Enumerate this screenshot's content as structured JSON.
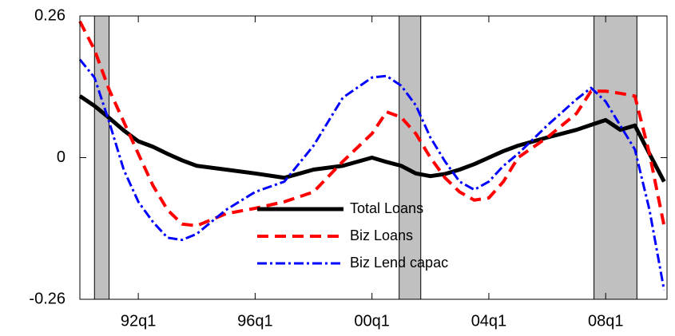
{
  "chart_data": {
    "type": "line",
    "x": [
      1990,
      1990.5,
      1991,
      1991.5,
      1992,
      1992.5,
      1993,
      1993.5,
      1994,
      1995,
      1996,
      1997,
      1998,
      1999,
      2000,
      2000.5,
      2001,
      2001.5,
      2002,
      2002.5,
      2003,
      2003.5,
      2004,
      2004.5,
      2005,
      2006,
      2007,
      2007.5,
      2008,
      2008.5,
      2009,
      2009.5,
      2010
    ],
    "series": [
      {
        "name": "Total Loans",
        "color": "#000000",
        "values": [
          0.113,
          0.095,
          0.073,
          0.05,
          0.03,
          0.02,
          0.007,
          -0.005,
          -0.015,
          -0.022,
          -0.029,
          -0.037,
          -0.022,
          -0.015,
          0,
          -0.008,
          -0.015,
          -0.029,
          -0.034,
          -0.03,
          -0.022,
          -0.012,
          0,
          0.012,
          0.022,
          0.037,
          0.051,
          0.06,
          0.069,
          0.051,
          0.059,
          0.007,
          -0.044
        ]
      },
      {
        "name": "Biz Loans",
        "color": "#ff0000",
        "values": [
          0.25,
          0.198,
          0.125,
          0.066,
          0.007,
          -0.051,
          -0.096,
          -0.122,
          -0.125,
          -0.103,
          -0.093,
          -0.081,
          -0.063,
          -0.007,
          0.044,
          0.084,
          0.074,
          0.044,
          0,
          -0.037,
          -0.063,
          -0.078,
          -0.074,
          -0.044,
          0,
          0.037,
          0.081,
          0.122,
          0.122,
          0.118,
          0.113,
          0.007,
          -0.125
        ]
      },
      {
        "name": "Biz Lend capac",
        "color": "#0000ff",
        "values": [
          0.18,
          0.147,
          0.066,
          -0.022,
          -0.081,
          -0.118,
          -0.147,
          -0.151,
          -0.14,
          -0.096,
          -0.063,
          -0.044,
          0.022,
          0.11,
          0.147,
          0.15,
          0.132,
          0.096,
          0.037,
          -0.007,
          -0.044,
          -0.059,
          -0.044,
          -0.015,
          0.007,
          0.059,
          0.107,
          0.128,
          0.103,
          0.059,
          0.015,
          -0.096,
          -0.243
        ]
      }
    ],
    "recessions": [
      [
        1990.5,
        1991
      ],
      [
        2000.93,
        2001.67
      ],
      [
        2007.6,
        2009.07
      ]
    ],
    "xlim": [
      1990,
      2010.1
    ],
    "xticks": [
      {
        "value": 1992,
        "label": "92q1"
      },
      {
        "value": 1996,
        "label": "96q1"
      },
      {
        "value": 2000,
        "label": "00q1"
      },
      {
        "value": 2004,
        "label": "04q1"
      },
      {
        "value": 2008,
        "label": "08q1"
      }
    ],
    "ylim": [
      -0.26,
      0.26
    ],
    "yticks": [
      -0.26,
      0,
      0.26
    ],
    "legend": "bottom-center"
  }
}
